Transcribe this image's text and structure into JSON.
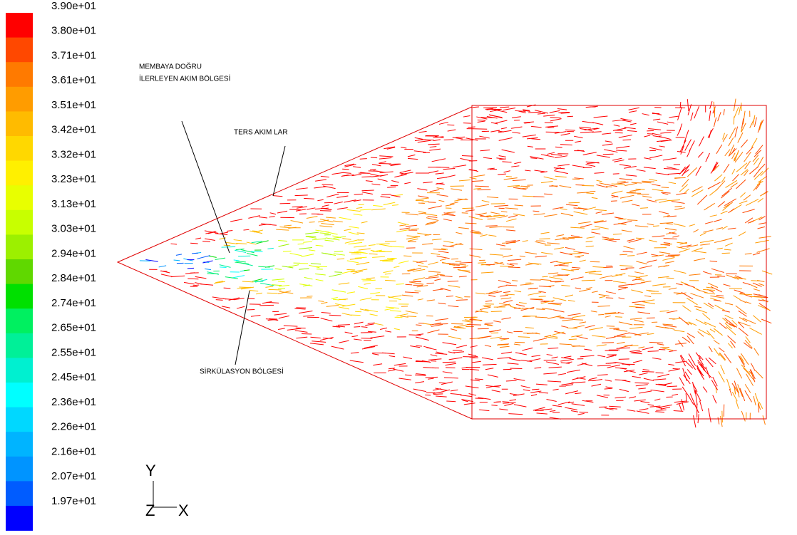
{
  "colorbar": {
    "labels": [
      "3.90e+01",
      "3.80e+01",
      "3.71e+01",
      "3.61e+01",
      "3.51e+01",
      "3.42e+01",
      "3.32e+01",
      "3.23e+01",
      "3.13e+01",
      "3.03e+01",
      "2.94e+01",
      "2.84e+01",
      "2.74e+01",
      "2.65e+01",
      "2.55e+01",
      "2.45e+01",
      "2.36e+01",
      "2.26e+01",
      "2.16e+01",
      "2.07e+01",
      "1.97e+01"
    ],
    "colors": [
      "#ff0000",
      "#ff4800",
      "#ff7a00",
      "#ff9c00",
      "#ffbb00",
      "#ffd800",
      "#fff000",
      "#e8ff00",
      "#c8ff00",
      "#9cf000",
      "#60d800",
      "#00e000",
      "#00f060",
      "#00f098",
      "#00f0d0",
      "#00ffff",
      "#00d8ff",
      "#00b4ff",
      "#0094ff",
      "#005cff",
      "#0000ff"
    ]
  },
  "annotations": {
    "upstream_line1": "MEMBAYA DOĞRU",
    "upstream_line2": "İLERLEYEN AKIM BÖLGESİ",
    "reverse_flow": "TERS AKIM LAR",
    "circulation": "SİRKÜLASYON BÖLGESİ"
  },
  "axes": {
    "y": "Y",
    "z": "Z",
    "x": "X"
  }
}
